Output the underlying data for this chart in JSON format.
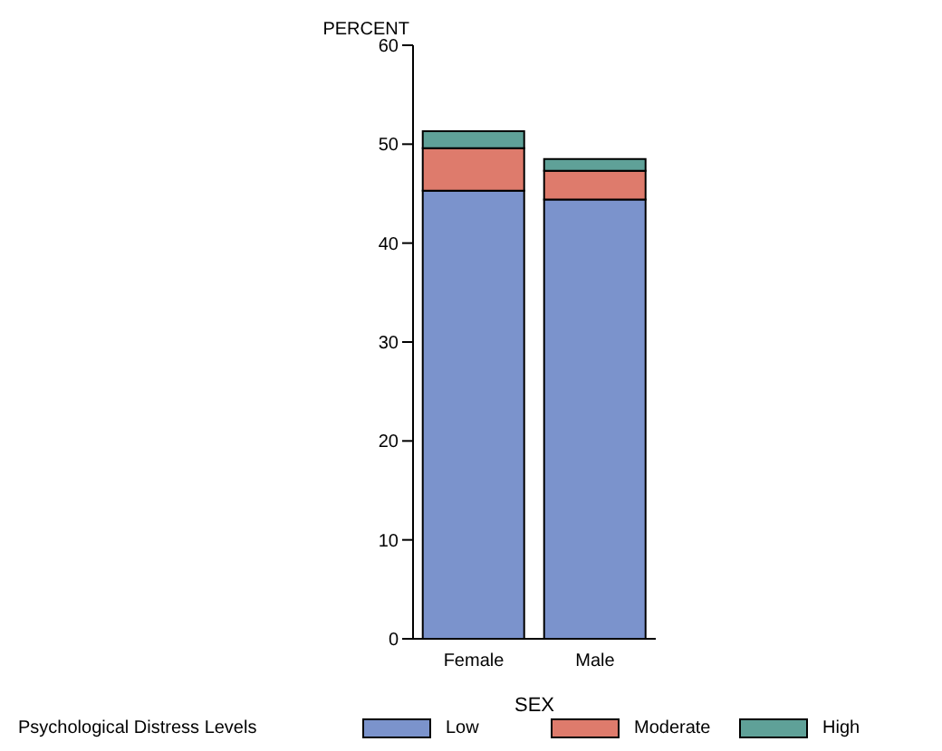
{
  "chart_data": {
    "type": "bar",
    "stacked": true,
    "categories": [
      "Female",
      "Male"
    ],
    "xlabel": "SEX",
    "ylabel": "PERCENT",
    "legend_title": "Psychological Distress Levels",
    "legend": "bottom",
    "grid": false,
    "ylim": [
      0,
      60
    ],
    "yticks": [
      0,
      10,
      20,
      30,
      40,
      50,
      60
    ],
    "series": [
      {
        "name": "Low",
        "color": "#7b93cc",
        "values": [
          45.3,
          44.4
        ]
      },
      {
        "name": "Moderate",
        "color": "#de7b6c",
        "values": [
          4.3,
          2.9
        ]
      },
      {
        "name": "High",
        "color": "#5fa198",
        "values": [
          1.7,
          1.2
        ]
      }
    ]
  }
}
